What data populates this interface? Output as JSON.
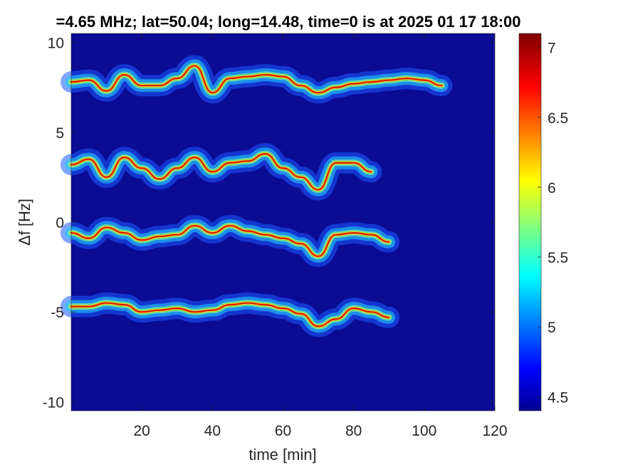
{
  "chart_data": {
    "type": "heatmap",
    "title": "=4.65 MHz;  lat=50.04; long=14.48, time=0 is at 2025 01 17 18:00",
    "xlabel": "time [min]",
    "ylabel": "Δf [Hz]",
    "xlim": [
      0,
      120
    ],
    "ylim": [
      -10.5,
      10.5
    ],
    "x_ticks": [
      20,
      40,
      60,
      80,
      100,
      120
    ],
    "x_tick_labels": [
      "20",
      "40",
      "60",
      "80",
      "100",
      "120"
    ],
    "y_ticks": [
      10,
      5,
      0,
      -5,
      -10
    ],
    "y_tick_labels": [
      "10",
      "5",
      "0",
      "-5",
      "-10"
    ],
    "colorbar": {
      "colormap": "jet",
      "clim": [
        4.4,
        7.1
      ],
      "ticks": [
        7,
        6.5,
        6,
        5.5,
        5,
        4.5
      ],
      "tick_labels": [
        "7",
        "6.5",
        "6",
        "5.5",
        "5",
        "4.5"
      ]
    },
    "background_level": 4.45,
    "series": [
      {
        "x": [
          0,
          5,
          10,
          15,
          20,
          25,
          30,
          35,
          40,
          45,
          50,
          55,
          60,
          65,
          70,
          75,
          80,
          85,
          90,
          95,
          100,
          105
        ],
        "y": [
          7.8,
          7.9,
          7.3,
          8.2,
          7.6,
          7.6,
          8.0,
          8.7,
          7.2,
          8.0,
          8.1,
          8.2,
          8.1,
          7.6,
          7.2,
          7.5,
          7.7,
          7.8,
          7.9,
          8.0,
          7.9,
          7.6
        ],
        "end_intensity": 7.0
      },
      {
        "x": [
          0,
          5,
          10,
          15,
          20,
          25,
          30,
          35,
          40,
          45,
          50,
          55,
          60,
          65,
          70,
          75,
          80,
          85
        ],
        "y": [
          3.2,
          3.5,
          2.5,
          3.6,
          3.0,
          2.4,
          3.0,
          3.6,
          2.8,
          3.3,
          3.4,
          3.8,
          3.0,
          2.5,
          1.8,
          3.3,
          3.3,
          2.8
        ],
        "end_intensity": 6.3
      },
      {
        "x": [
          0,
          5,
          10,
          15,
          20,
          25,
          30,
          35,
          40,
          45,
          50,
          55,
          60,
          65,
          70,
          75,
          80,
          85,
          90
        ],
        "y": [
          -0.6,
          -0.9,
          -0.3,
          -0.6,
          -1.0,
          -0.8,
          -0.7,
          -0.2,
          -0.6,
          -0.2,
          -0.5,
          -0.7,
          -0.9,
          -1.2,
          -1.9,
          -0.7,
          -0.6,
          -0.7,
          -1.1
        ],
        "end_intensity": 6.4
      },
      {
        "x": [
          0,
          5,
          10,
          15,
          20,
          25,
          30,
          35,
          40,
          45,
          50,
          55,
          60,
          65,
          70,
          75,
          80,
          85,
          90
        ],
        "y": [
          -4.7,
          -4.7,
          -4.5,
          -4.6,
          -5.0,
          -4.9,
          -4.8,
          -5.0,
          -4.9,
          -4.6,
          -4.5,
          -4.6,
          -4.8,
          -5.1,
          -5.8,
          -5.4,
          -4.8,
          -5.0,
          -5.3
        ],
        "end_intensity": 6.0
      }
    ]
  }
}
